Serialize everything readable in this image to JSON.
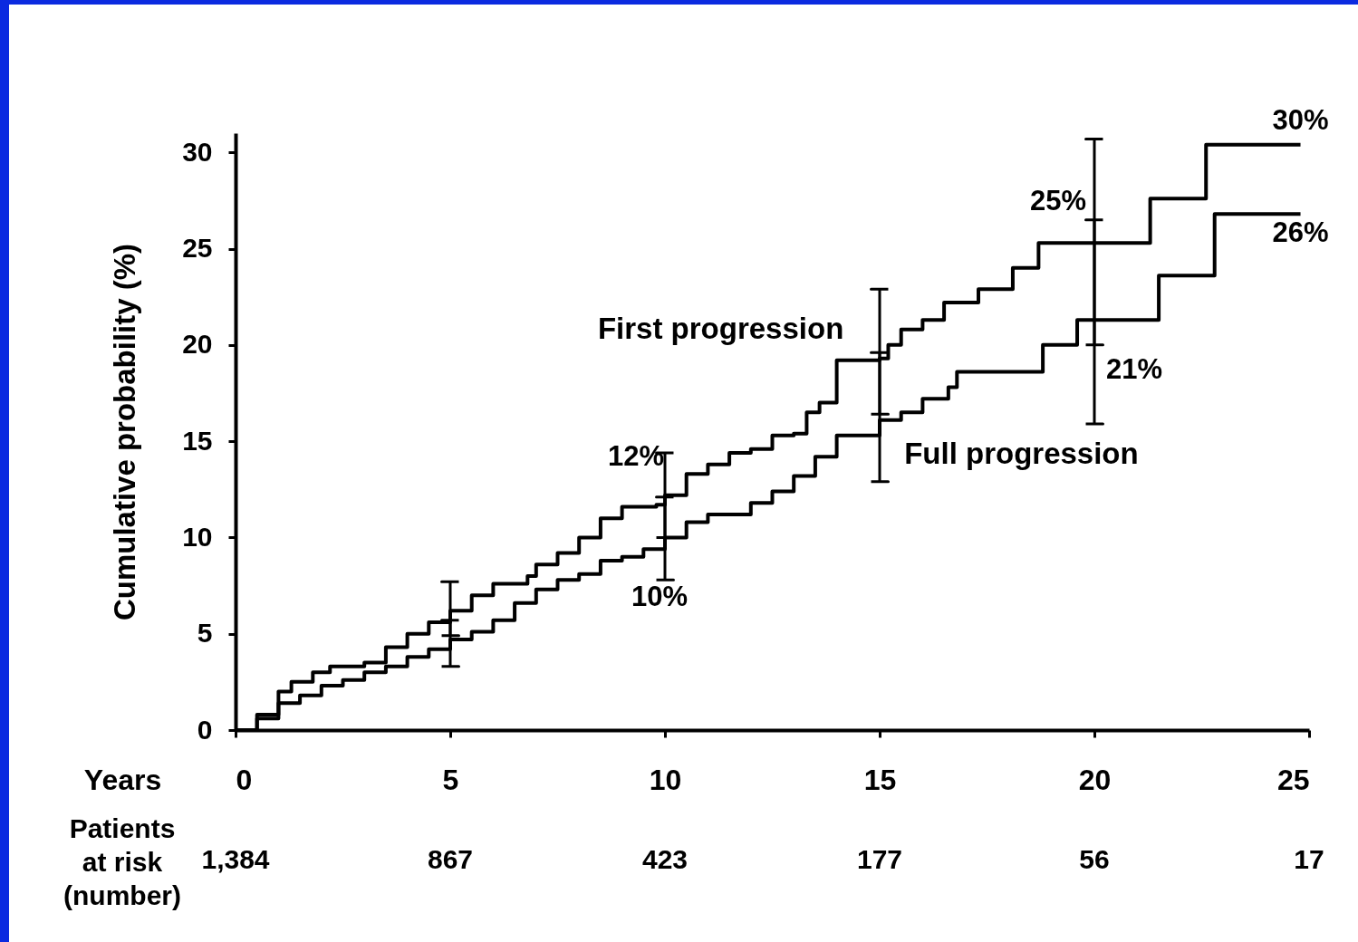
{
  "chart_data": {
    "type": "step",
    "xlabel": "Years",
    "ylabel": "Cumulative probability (%)",
    "xlim": [
      0,
      25
    ],
    "xticks": [
      0,
      5,
      10,
      15,
      20,
      25
    ],
    "ylim": [
      0,
      31
    ],
    "yticks": [
      0,
      5,
      10,
      15,
      20,
      25,
      30
    ],
    "grid": false,
    "legend": "center",
    "series": [
      {
        "name": "First progression",
        "color": "#000000",
        "x": [
          0,
          0.5,
          1,
          1.3,
          1.8,
          2.2,
          3,
          3.5,
          4,
          4.5,
          5,
          5.5,
          6,
          6.8,
          7,
          7.5,
          8,
          8.5,
          9,
          9.8,
          10,
          10.5,
          11,
          11.5,
          12,
          12.5,
          13,
          13.3,
          13.6,
          14,
          15,
          15.2,
          15.5,
          16,
          16.5,
          17.3,
          18.1,
          18.7,
          20,
          21.3,
          22.6,
          24.8
        ],
        "values": [
          0,
          0.8,
          2.0,
          2.5,
          3.0,
          3.3,
          3.5,
          4.3,
          5.0,
          5.6,
          6.2,
          7.0,
          7.6,
          8.0,
          8.6,
          9.2,
          10.0,
          11.0,
          11.6,
          11.7,
          12.2,
          13.3,
          13.8,
          14.4,
          14.6,
          15.3,
          15.4,
          16.5,
          17.0,
          19.2,
          19.3,
          20.0,
          20.8,
          21.3,
          22.2,
          22.9,
          24.0,
          25.3,
          25.3,
          27.6,
          30.4,
          30.4
        ],
        "errors": [
          null,
          null,
          null,
          null,
          null,
          null,
          null,
          null,
          null,
          null,
          [
            4.9,
            7.7
          ],
          null,
          null,
          null,
          null,
          null,
          null,
          null,
          null,
          null,
          [
            10.0,
            14.4
          ],
          null,
          null,
          null,
          null,
          null,
          null,
          null,
          null,
          null,
          [
            16.4,
            22.9
          ],
          null,
          null,
          null,
          null,
          null,
          null,
          null,
          [
            20.0,
            30.7
          ],
          null,
          null,
          null
        ]
      },
      {
        "name": "Full progression",
        "color": "#000000",
        "x": [
          0,
          0.5,
          1,
          1.5,
          2,
          2.5,
          3,
          3.5,
          4,
          4.5,
          5,
          5.5,
          6,
          6.5,
          7,
          7.5,
          8,
          8.5,
          9,
          9.5,
          10,
          10.5,
          11,
          12,
          12.5,
          13,
          13.5,
          14,
          15,
          15.5,
          16,
          16.6,
          16.8,
          18.8,
          19.6,
          20,
          21.5,
          22.8,
          24.8
        ],
        "values": [
          0,
          0.6,
          1.4,
          1.8,
          2.3,
          2.6,
          3.0,
          3.3,
          3.8,
          4.2,
          4.7,
          5.1,
          5.7,
          6.6,
          7.3,
          7.8,
          8.1,
          8.8,
          9.0,
          9.4,
          10.0,
          10.8,
          11.2,
          11.8,
          12.4,
          13.2,
          14.2,
          15.3,
          16.1,
          16.5,
          17.2,
          17.8,
          18.6,
          20.0,
          21.3,
          21.3,
          23.6,
          26.8,
          26.8
        ],
        "errors": [
          null,
          null,
          null,
          null,
          null,
          null,
          null,
          null,
          null,
          null,
          [
            3.3,
            5.7
          ],
          null,
          null,
          null,
          null,
          null,
          null,
          null,
          null,
          null,
          [
            7.8,
            12.1
          ],
          null,
          null,
          null,
          null,
          null,
          null,
          null,
          [
            12.9,
            19.6
          ],
          null,
          null,
          null,
          null,
          null,
          null,
          [
            15.9,
            26.5
          ],
          null,
          null,
          null
        ]
      }
    ],
    "annotations": [
      {
        "text": "12%",
        "x": 10,
        "y": 12
      },
      {
        "text": "10%",
        "x": 10,
        "y": 10
      },
      {
        "text": "25%",
        "x": 20,
        "y": 25
      },
      {
        "text": "21%",
        "x": 20,
        "y": 21
      },
      {
        "text": "30%",
        "x": 24.8,
        "y": 30.4
      },
      {
        "text": "26%",
        "x": 24.8,
        "y": 26.8
      },
      "Patients at risk (number)",
      "1,384",
      "867",
      "423",
      "177",
      "56",
      "17"
    ]
  }
}
